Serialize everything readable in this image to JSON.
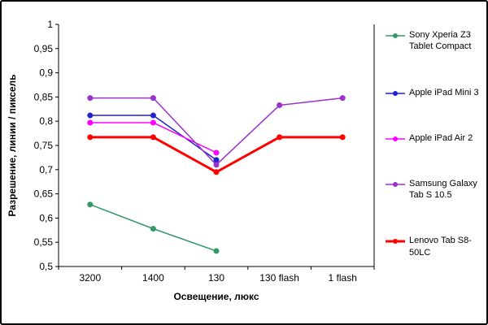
{
  "chart_data": {
    "type": "line",
    "title": "",
    "xlabel": "Освещение, люкс",
    "ylabel": "Разрешение, линии / пиксель",
    "categories": [
      "3200",
      "1400",
      "130",
      "130 flash",
      "1 flash"
    ],
    "ylim": [
      0.5,
      1.0
    ],
    "ytick_step": 0.05,
    "decimal_separator": ",",
    "grid": false,
    "legend_position": "right",
    "series": [
      {
        "name": "Sony Xperia Z3 Tablet Compact",
        "color": "#339966",
        "width": 1.5,
        "marker": "circle",
        "values": [
          0.628,
          0.578,
          0.532,
          null,
          null
        ]
      },
      {
        "name": "Apple iPad Mini 3",
        "color": "#2222CC",
        "width": 1.5,
        "marker": "circle",
        "values": [
          0.812,
          0.812,
          0.72,
          null,
          null
        ]
      },
      {
        "name": "Apple iPad Air 2",
        "color": "#FF00FF",
        "width": 1.5,
        "marker": "circle",
        "values": [
          0.797,
          0.797,
          0.735,
          null,
          null
        ]
      },
      {
        "name": "Samsung Galaxy Tab S 10.5",
        "color": "#9933CC",
        "width": 1.5,
        "marker": "circle",
        "values": [
          0.848,
          0.848,
          0.71,
          0.833,
          0.848
        ]
      },
      {
        "name": "Lenovo Tab S8-50LC",
        "color": "#FF0000",
        "width": 3,
        "marker": "circle",
        "values": [
          0.767,
          0.767,
          0.695,
          0.767,
          0.767
        ]
      }
    ]
  }
}
